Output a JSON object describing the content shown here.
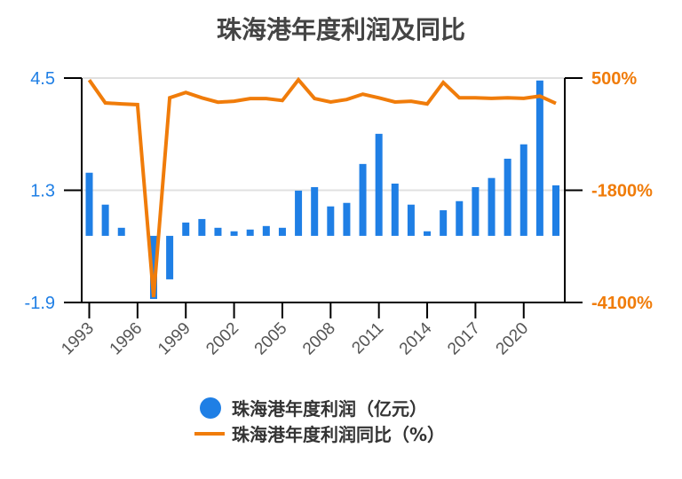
{
  "title": "珠海港年度利润及同比",
  "colors": {
    "bar": "#1f7fe5",
    "line": "#f07c0a",
    "left_axis_text": "#1f7fe5",
    "right_axis_text": "#f07c0a",
    "grid": "#e0e0e0",
    "axis": "#000000",
    "tick_text": "#555555"
  },
  "legend": {
    "items": [
      {
        "label": "珠海港年度利润（亿元）",
        "type": "dot"
      },
      {
        "label": "珠海港年度利润同比（%）",
        "type": "line"
      }
    ]
  },
  "chart_data": {
    "type": "bar+line",
    "title": "珠海港年度利润及同比",
    "xlabel": "",
    "categories": [
      "1993",
      "1994",
      "1995",
      "1996",
      "1997",
      "1998",
      "1999",
      "2000",
      "2001",
      "2002",
      "2003",
      "2004",
      "2005",
      "2006",
      "2007",
      "2008",
      "2009",
      "2010",
      "2011",
      "2012",
      "2013",
      "2014",
      "2015",
      "2016",
      "2017",
      "2018",
      "2019",
      "2020",
      "2021",
      "2022"
    ],
    "x_tick_labels": [
      "1993",
      "1996",
      "1999",
      "2002",
      "2005",
      "2008",
      "2011",
      "2014",
      "2017",
      "2020"
    ],
    "series": [
      {
        "name": "珠海港年度利润（亿元）",
        "type": "bar",
        "axis": "left",
        "values": [
          1.8,
          0.89,
          0.23,
          0.0,
          -1.8,
          -1.24,
          0.38,
          0.48,
          0.23,
          0.13,
          0.18,
          0.28,
          0.23,
          1.29,
          1.39,
          0.84,
          0.94,
          2.05,
          2.91,
          1.49,
          0.89,
          0.13,
          0.73,
          0.99,
          1.39,
          1.65,
          2.2,
          2.61,
          4.43,
          1.44
        ]
      },
      {
        "name": "珠海港年度利润同比（%）",
        "type": "line",
        "axis": "right",
        "values": [
          460,
          -10,
          -30,
          -45,
          -3990,
          95,
          205,
          95,
          5,
          25,
          80,
          80,
          40,
          465,
          80,
          10,
          60,
          170,
          95,
          10,
          25,
          -30,
          410,
          95,
          95,
          85,
          95,
          85,
          130,
          -20
        ]
      }
    ],
    "left_axis": {
      "ylim": [
        -1.9,
        4.5
      ],
      "ticks": [
        "4.5",
        "1.3",
        "-1.9"
      ]
    },
    "right_axis": {
      "ylim": [
        -4100,
        500
      ],
      "ticks": [
        "500%",
        "-1800%",
        "-4100%"
      ]
    },
    "grid": true,
    "legend_position": "bottom"
  }
}
